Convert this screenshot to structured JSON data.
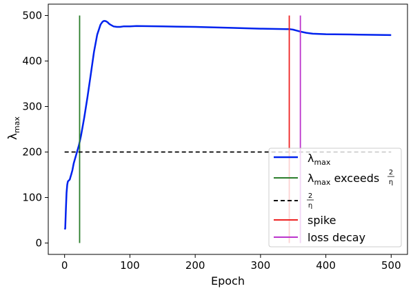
{
  "chart_data": {
    "type": "line",
    "title": "",
    "xlabel": "Epoch",
    "ylabel": "λ",
    "ylabel_sub": "max",
    "xlim": [
      -25,
      525
    ],
    "ylim": [
      -25,
      525
    ],
    "xticks": [
      0,
      100,
      200,
      300,
      400,
      500
    ],
    "yticks": [
      0,
      100,
      200,
      300,
      400,
      500
    ],
    "grid": false,
    "legend_position": "lower-right",
    "series": [
      {
        "name": "λmax",
        "color": "#0022ee",
        "style": "solid",
        "x": [
          0,
          1,
          2,
          3,
          4,
          5,
          6,
          7,
          8,
          9,
          10,
          12,
          14,
          16,
          18,
          20,
          22,
          25,
          30,
          35,
          40,
          45,
          50,
          55,
          58,
          60,
          62,
          64,
          66,
          68,
          70,
          75,
          80,
          85,
          90,
          95,
          100,
          110,
          150,
          200,
          250,
          300,
          340,
          345,
          350,
          355,
          360,
          370,
          380,
          400,
          450,
          500
        ],
        "y": [
          30,
          32,
          75,
          110,
          128,
          135,
          137,
          138,
          140,
          145,
          150,
          160,
          175,
          185,
          195,
          205,
          215,
          235,
          275,
          320,
          370,
          420,
          458,
          480,
          486,
          488,
          488,
          487,
          485,
          482,
          480,
          476,
          475,
          475,
          476,
          476,
          476,
          477,
          476,
          475,
          473,
          471,
          470,
          470,
          469,
          467,
          465,
          462,
          460,
          459,
          458,
          457
        ]
      },
      {
        "name": "λmax exceeds 2/η",
        "color": "#2a7d2a",
        "style": "vertical",
        "x": 23,
        "y_range": [
          0,
          500
        ]
      },
      {
        "name": "2/η",
        "color": "#000000",
        "style": "dashed",
        "y": 200,
        "x_range": [
          0,
          500
        ]
      },
      {
        "name": "spike",
        "color": "#ee2222",
        "style": "vertical",
        "x": 344,
        "y_range": [
          0,
          500
        ]
      },
      {
        "name": "loss decay",
        "color": "#bb33cc",
        "style": "vertical",
        "x": 361,
        "y_range": [
          0,
          500
        ]
      }
    ]
  }
}
